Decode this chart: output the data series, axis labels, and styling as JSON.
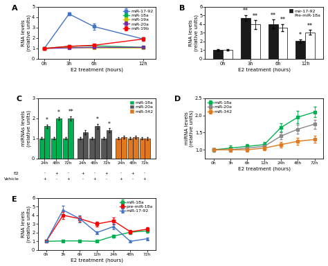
{
  "panelA": {
    "x": [
      0,
      3,
      6,
      12
    ],
    "xticks": [
      0,
      3,
      6,
      12
    ],
    "xticklabels": [
      "0h",
      "3h",
      "6h",
      "12h"
    ],
    "xlabel": "E2 treatment (hours)",
    "ylabel": "RNA levels\n(relative units)",
    "ylim": [
      0,
      5
    ],
    "yticks": [
      0,
      1,
      2,
      3,
      4,
      5
    ],
    "series": {
      "miR-17-92": {
        "y": [
          1.0,
          4.3,
          3.1,
          1.9
        ],
        "err": [
          0.05,
          0.15,
          0.3,
          0.15
        ],
        "color": "#4472C4",
        "marker": "s"
      },
      "miR-18a": {
        "y": [
          1.0,
          1.2,
          1.25,
          1.1
        ],
        "err": [
          0.05,
          0.1,
          0.1,
          0.1
        ],
        "color": "#00B050",
        "marker": "s"
      },
      "miR-19a": {
        "y": [
          1.0,
          1.1,
          1.05,
          1.05
        ],
        "err": [
          0.05,
          0.08,
          0.08,
          0.06
        ],
        "color": "#C8C000",
        "marker": "s"
      },
      "miR-20a": {
        "y": [
          1.0,
          1.05,
          1.1,
          1.1
        ],
        "err": [
          0.05,
          0.07,
          0.07,
          0.08
        ],
        "color": "#7030A0",
        "marker": "s"
      },
      "miR-19b": {
        "y": [
          1.0,
          1.2,
          1.3,
          1.9
        ],
        "err": [
          0.05,
          0.09,
          0.12,
          0.15
        ],
        "color": "#FF0000",
        "marker": "s"
      }
    },
    "legend_order": [
      "miR-17-92",
      "miR-18a",
      "miR-19a",
      "miR-20a",
      "miR-19b"
    ]
  },
  "panelB": {
    "xticklabels": [
      "0h",
      "3h",
      "6h",
      "12h"
    ],
    "xlabel": "E2 treatment (hours)",
    "ylabel": "RNA levels\n(relative units)",
    "ylim": [
      0,
      6
    ],
    "yticks": [
      0,
      1,
      2,
      3,
      4,
      5,
      6
    ],
    "bar_width": 0.35,
    "series": {
      "mir-17-92": {
        "values": [
          1.05,
          4.7,
          4.0,
          2.05
        ],
        "err": [
          0.08,
          0.35,
          0.5,
          0.2
        ],
        "color": "#1a1a1a"
      },
      "Pre-miR-18a": {
        "values": [
          1.0,
          3.95,
          3.6,
          3.05
        ],
        "err": [
          0.08,
          0.5,
          0.4,
          0.3
        ],
        "color": "#FFFFFF"
      }
    },
    "sig": {
      "mir-17-92": [
        "",
        "**",
        "**",
        "*"
      ],
      "Pre-miR-18a": [
        "",
        "**",
        "**",
        "**"
      ]
    }
  },
  "panelC": {
    "groups": [
      "miR-18a",
      "miR-20a",
      "miR-342"
    ],
    "timepoints": [
      "24h",
      "48h",
      "72h"
    ],
    "values": {
      "miR-18a": {
        "minus": [
          1.0,
          1.0,
          1.0
        ],
        "plus": [
          1.6,
          2.0,
          2.0
        ]
      },
      "miR-20a": {
        "minus": [
          1.0,
          1.0,
          1.0
        ],
        "plus": [
          1.3,
          1.6,
          1.4
        ]
      },
      "miR-342": {
        "minus": [
          1.0,
          1.0,
          1.0
        ],
        "plus": [
          1.05,
          1.05,
          1.0
        ]
      }
    },
    "errors": {
      "miR-18a": {
        "minus": [
          0.06,
          0.06,
          0.06
        ],
        "plus": [
          0.1,
          0.08,
          0.1
        ]
      },
      "miR-20a": {
        "minus": [
          0.06,
          0.06,
          0.06
        ],
        "plus": [
          0.09,
          0.12,
          0.1
        ]
      },
      "miR-342": {
        "minus": [
          0.06,
          0.06,
          0.06
        ],
        "plus": [
          0.07,
          0.07,
          0.07
        ]
      }
    },
    "sig": {
      "miR-18a": [
        "*",
        "*",
        "**"
      ],
      "miR-20a": [
        "",
        "*",
        "*"
      ],
      "miR-342": [
        "",
        "",
        ""
      ]
    },
    "colors": {
      "miR-18a": "#00B050",
      "miR-20a": "#555555",
      "miR-342": "#E07820"
    },
    "ylabel": "miRNAs levels\n(relative units)",
    "ylim": [
      0,
      3
    ],
    "yticks": [
      0,
      1,
      2,
      3
    ],
    "e2_signs": [
      "-",
      "+",
      "-",
      "+",
      "-",
      "+",
      "-",
      "+",
      "-",
      "+",
      "-",
      "+",
      "-",
      "+",
      "-",
      "+",
      "-",
      "+"
    ],
    "veh_signs": [
      "+",
      "-",
      "+",
      "-",
      "+",
      "-",
      "+",
      "-",
      "+",
      "-",
      "+",
      "-",
      "+",
      "-",
      "+",
      "-",
      "+",
      "-"
    ]
  },
  "panelD": {
    "xticklabels": [
      "0h",
      "3h",
      "6h",
      "12h",
      "24h",
      "48h",
      "72h"
    ],
    "xlabel": "E2 treatment (hours)",
    "ylabel": "miRNA levels\n(relative units)",
    "ylim": [
      0.75,
      2.5
    ],
    "yticks": [
      1.0,
      1.5,
      2.0,
      2.5
    ],
    "series": {
      "miR-18a": {
        "y": [
          1.0,
          1.05,
          1.1,
          1.15,
          1.65,
          1.95,
          2.1
        ],
        "err": [
          0.05,
          0.07,
          0.07,
          0.08,
          0.12,
          0.18,
          0.15
        ],
        "color": "#00B050",
        "marker": "s"
      },
      "miR-20a": {
        "y": [
          1.0,
          1.0,
          1.05,
          1.1,
          1.4,
          1.6,
          1.75
        ],
        "err": [
          0.05,
          0.06,
          0.06,
          0.08,
          0.1,
          0.13,
          0.13
        ],
        "color": "#888888",
        "marker": "s"
      },
      "miR-342": {
        "y": [
          1.0,
          1.0,
          1.0,
          1.05,
          1.15,
          1.25,
          1.3
        ],
        "err": [
          0.04,
          0.05,
          0.05,
          0.06,
          0.08,
          0.1,
          0.1
        ],
        "color": "#E07820",
        "marker": "s"
      }
    }
  },
  "panelE": {
    "xticklabels": [
      "0h",
      "3h",
      "6h",
      "12h",
      "24h",
      "48h",
      "72h"
    ],
    "xlabel": "E2 treatment (hours)",
    "ylabel": "RNA levels\n(relative units)",
    "ylim": [
      0,
      6
    ],
    "yticks": [
      0,
      1,
      2,
      3,
      4,
      5,
      6
    ],
    "series": {
      "miR-18a": {
        "y": [
          1.0,
          1.05,
          1.05,
          1.0,
          1.6,
          2.05,
          2.2
        ],
        "err": [
          0.05,
          0.07,
          0.07,
          0.07,
          0.15,
          0.2,
          0.2
        ],
        "color": "#00B050",
        "marker": "s"
      },
      "pre-miR-18a": {
        "y": [
          1.0,
          4.0,
          3.6,
          3.0,
          3.35,
          2.1,
          2.4
        ],
        "err": [
          0.08,
          0.4,
          0.3,
          0.3,
          0.4,
          0.2,
          0.25
        ],
        "color": "#FF0000",
        "marker": "s"
      },
      "miR-17-92": {
        "y": [
          1.0,
          4.6,
          3.6,
          2.0,
          2.7,
          1.0,
          1.3
        ],
        "err": [
          0.08,
          0.5,
          0.4,
          0.18,
          0.3,
          0.12,
          0.15
        ],
        "color": "#4472C4",
        "marker": "^"
      }
    }
  }
}
